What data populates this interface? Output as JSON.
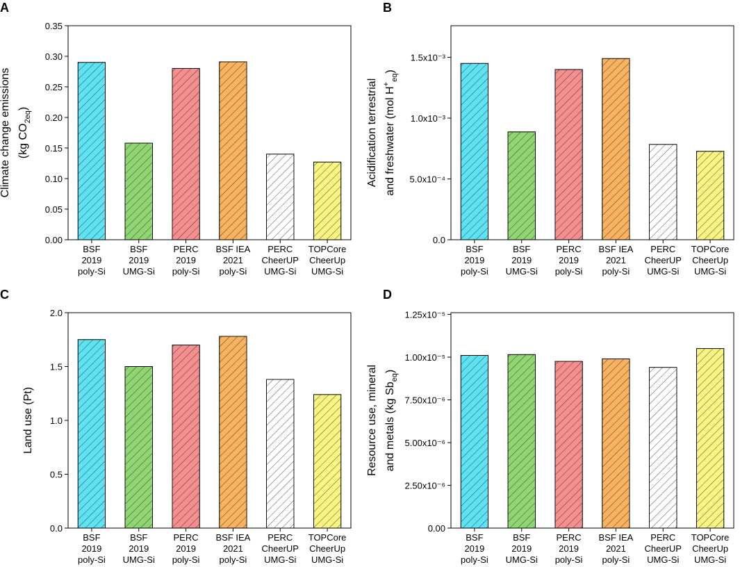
{
  "chart_data": [
    {
      "type": "bar",
      "label": "A",
      "ylabel": [
        [
          {
            "text": "Climate change emissions"
          }
        ],
        [
          {
            "text": "(kg CO"
          },
          {
            "text": "2eq",
            "sub": true
          },
          {
            "text": ")"
          }
        ]
      ],
      "categories": [
        [
          "BSF",
          "2019",
          "poly-Si"
        ],
        [
          "BSF",
          "2019",
          "UMG-Si"
        ],
        [
          "PERC",
          "2019",
          "poly-Si"
        ],
        [
          "BSF IEA",
          "2021",
          "poly-Si"
        ],
        [
          "PERC",
          "CheerUP",
          "UMG-Si"
        ],
        [
          "TOPCore",
          "CheerUp",
          "UMG-Si"
        ]
      ],
      "values": [
        0.29,
        0.158,
        0.28,
        0.291,
        0.14,
        0.127
      ],
      "colors": [
        "#5fe3f2",
        "#8fd672",
        "#f58e8e",
        "#f8b260",
        "#ffffff",
        "#f8f582"
      ],
      "ylim": [
        0,
        0.35
      ],
      "yticks": [
        {
          "value": 0,
          "label": "0.00"
        },
        0.05,
        {
          "value": 0.1,
          "label": "0.10"
        },
        0.15,
        {
          "value": 0.2,
          "label": "0.20"
        },
        0.25,
        {
          "value": 0.3,
          "label": "0.30"
        },
        0.35
      ]
    },
    {
      "type": "bar",
      "label": "B",
      "ylabel": [
        [
          {
            "text": "Acidification terrestrial"
          }
        ],
        [
          {
            "text": "and freshwater (mol H"
          },
          {
            "text": "+",
            "sup": true
          },
          {
            "text": "eq",
            "sub": true
          },
          {
            "text": ")"
          }
        ]
      ],
      "categories": [
        [
          "BSF",
          "2019",
          "poly-Si"
        ],
        [
          "BSF",
          "2019",
          "UMG-Si"
        ],
        [
          "PERC",
          "2019",
          "poly-Si"
        ],
        [
          "BSF IEA",
          "2021",
          "poly-Si"
        ],
        [
          "PERC",
          "CheerUP",
          "UMG-Si"
        ],
        [
          "TOPCore",
          "CheerUp",
          "UMG-Si"
        ]
      ],
      "values": [
        0.00145,
        0.000887,
        0.0014,
        0.00149,
        0.000784,
        0.000727
      ],
      "colors": [
        "#5fe3f2",
        "#8fd672",
        "#f58e8e",
        "#f8b260",
        "#ffffff",
        "#f8f582"
      ],
      "ylim": [
        0,
        0.00176
      ],
      "yticks": [
        {
          "value": 0,
          "label": "0.0"
        },
        {
          "value": 0.0005,
          "label": "5.0x10⁻⁴"
        },
        {
          "value": 0.001,
          "label": "1.0x10⁻³"
        },
        {
          "value": 0.0015,
          "label": "1.5x10⁻³"
        }
      ]
    },
    {
      "type": "bar",
      "label": "C",
      "ylabel": [
        [
          {
            "text": "Land use (Pt)"
          }
        ]
      ],
      "categories": [
        [
          "BSF",
          "2019",
          "poly-Si"
        ],
        [
          "BSF",
          "2019",
          "UMG-Si"
        ],
        [
          "PERC",
          "2019",
          "poly-Si"
        ],
        [
          "BSF IEA",
          "2021",
          "poly-Si"
        ],
        [
          "PERC",
          "CheerUP",
          "UMG-Si"
        ],
        [
          "TOPCore",
          "CheerUp",
          "UMG-Si"
        ]
      ],
      "values": [
        1.75,
        1.5,
        1.7,
        1.78,
        1.38,
        1.24
      ],
      "colors": [
        "#5fe3f2",
        "#8fd672",
        "#f58e8e",
        "#f8b260",
        "#ffffff",
        "#f8f582"
      ],
      "ylim": [
        0,
        2
      ],
      "yticks": [
        {
          "value": 0,
          "label": "0.0"
        },
        0.5,
        {
          "value": 1,
          "label": "1.0"
        },
        1.5,
        {
          "value": 2,
          "label": "2.0"
        }
      ]
    },
    {
      "type": "bar",
      "label": "D",
      "ylabel": [
        [
          {
            "text": "Resource use, mineral"
          }
        ],
        [
          {
            "text": "and metals (kg Sb"
          },
          {
            "text": "eq",
            "sub": true
          },
          {
            "text": ")"
          }
        ]
      ],
      "categories": [
        [
          "BSF",
          "2019",
          "poly-Si"
        ],
        [
          "BSF",
          "2019",
          "UMG-Si"
        ],
        [
          "PERC",
          "2019",
          "poly-Si"
        ],
        [
          "BSF IEA",
          "2021",
          "poly-Si"
        ],
        [
          "PERC",
          "CheerUP",
          "UMG-Si"
        ],
        [
          "TOPCore",
          "CheerUp",
          "UMG-Si"
        ]
      ],
      "values": [
        1.01e-05,
        1.015e-05,
        9.75e-06,
        9.9e-06,
        9.4e-06,
        1.05e-05
      ],
      "colors": [
        "#5fe3f2",
        "#8fd672",
        "#f58e8e",
        "#f8b260",
        "#ffffff",
        "#f8f582"
      ],
      "ylim": [
        0,
        1.26e-05
      ],
      "yticks": [
        {
          "value": 0,
          "label": "0.00"
        },
        {
          "value": 2.5e-06,
          "label": "2.50x10⁻⁶"
        },
        {
          "value": 5e-06,
          "label": "5.00x10⁻⁶"
        },
        {
          "value": 7.5e-06,
          "label": "7.50x10⁻⁶"
        },
        {
          "value": 1e-05,
          "label": "1.00x10⁻⁵"
        },
        {
          "value": 1.25e-05,
          "label": "1.25x10⁻⁵"
        }
      ]
    }
  ]
}
